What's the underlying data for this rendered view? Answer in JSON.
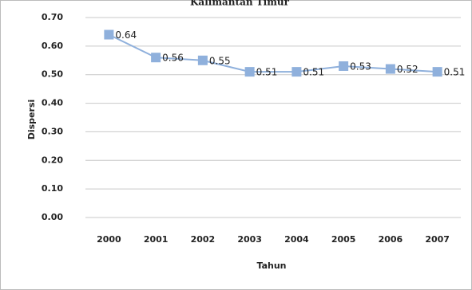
{
  "chart_data": {
    "type": "line",
    "title": "Kalimantan Timur",
    "x_label": "Tahun",
    "y_label": "Dispersi",
    "categories": [
      "2000",
      "2001",
      "2002",
      "2003",
      "2004",
      "2005",
      "2006",
      "2007"
    ],
    "series": [
      {
        "name": "Dispersi",
        "color": "#8fb0dc",
        "values": [
          0.64,
          0.56,
          0.55,
          0.51,
          0.51,
          0.53,
          0.52,
          0.51
        ]
      }
    ],
    "ylim": [
      0,
      0.7
    ],
    "yticks": [
      {
        "value": 0,
        "label": "0.00"
      },
      {
        "value": 0.1,
        "label": "0.10"
      },
      {
        "value": 0.2,
        "label": "0.20"
      },
      {
        "value": 0.3,
        "label": "0.30"
      },
      {
        "value": 0.4,
        "label": "0.40"
      },
      {
        "value": 0.5,
        "label": "0.50"
      },
      {
        "value": 0.6,
        "label": "0.60"
      },
      {
        "value": 0.7,
        "label": "0.70"
      }
    ],
    "grid": true
  }
}
